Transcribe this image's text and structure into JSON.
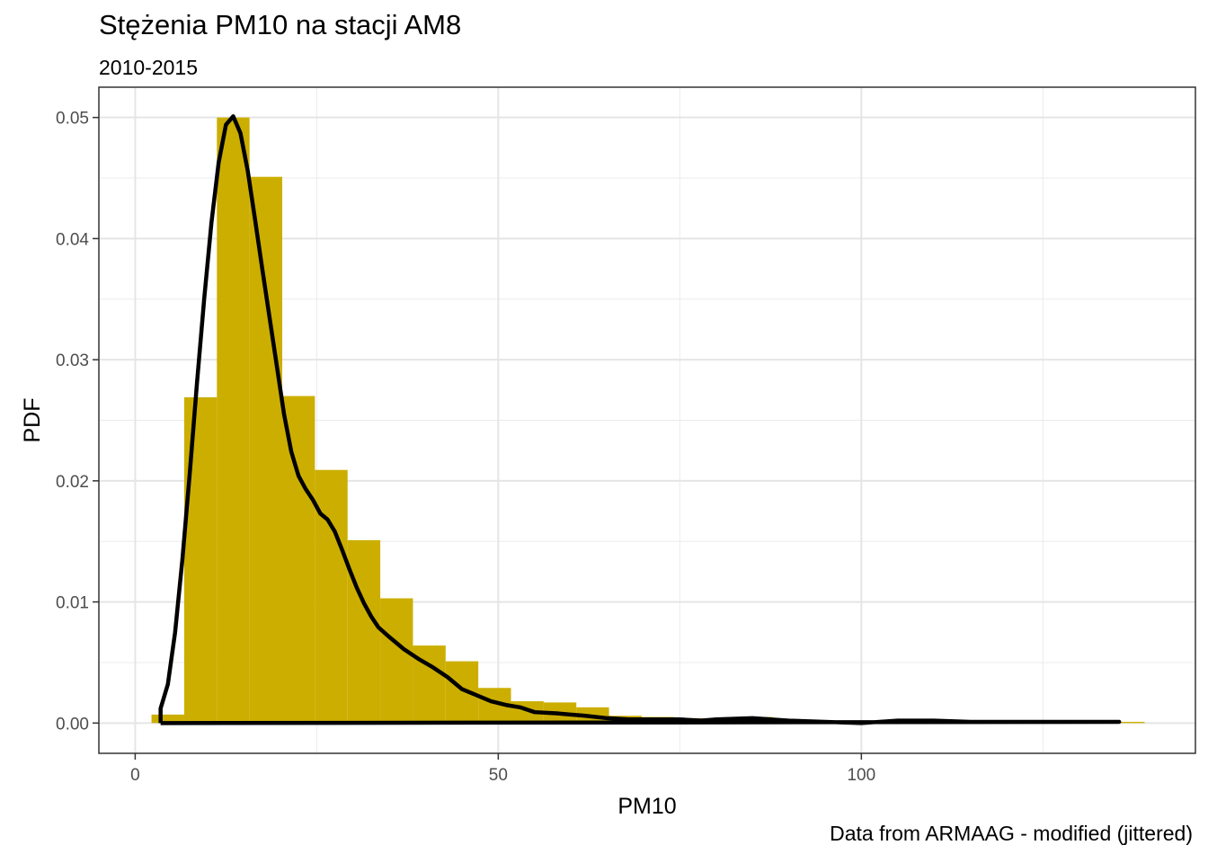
{
  "chart_data": {
    "type": "histogram",
    "title": "Stężenia PM10 na stacji AM8",
    "subtitle": "2010-2015",
    "caption": "Data from ARMAAG - modified (jittered)",
    "xlabel": "PM10",
    "ylabel": "PDF",
    "xlim": [
      -5,
      146
    ],
    "ylim": [
      -0.0025,
      0.0525
    ],
    "x_ticks": [
      0,
      50,
      100
    ],
    "x_tick_labels": [
      "0",
      "50",
      "100"
    ],
    "y_ticks": [
      0.0,
      0.01,
      0.02,
      0.03,
      0.04,
      0.05
    ],
    "y_tick_labels": [
      "0.00",
      "0.01",
      "0.02",
      "0.03",
      "0.04",
      "0.05"
    ],
    "grid": true,
    "bar_color": "#CCAE00",
    "line_color": "#000000",
    "bars": [
      {
        "x0": 2.25,
        "x1": 6.75,
        "y": 0.0007
      },
      {
        "x0": 6.75,
        "x1": 11.25,
        "y": 0.0269
      },
      {
        "x0": 11.25,
        "x1": 15.75,
        "y": 0.05
      },
      {
        "x0": 15.75,
        "x1": 20.25,
        "y": 0.0451
      },
      {
        "x0": 20.25,
        "x1": 24.75,
        "y": 0.027
      },
      {
        "x0": 24.75,
        "x1": 29.25,
        "y": 0.0209
      },
      {
        "x0": 29.25,
        "x1": 33.75,
        "y": 0.0151
      },
      {
        "x0": 33.75,
        "x1": 38.25,
        "y": 0.0103
      },
      {
        "x0": 38.25,
        "x1": 42.75,
        "y": 0.0064
      },
      {
        "x0": 42.75,
        "x1": 47.25,
        "y": 0.0051
      },
      {
        "x0": 47.25,
        "x1": 51.75,
        "y": 0.0029
      },
      {
        "x0": 51.75,
        "x1": 56.25,
        "y": 0.0018
      },
      {
        "x0": 56.25,
        "x1": 60.75,
        "y": 0.0017
      },
      {
        "x0": 60.75,
        "x1": 65.25,
        "y": 0.0013
      },
      {
        "x0": 65.25,
        "x1": 69.75,
        "y": 0.0006
      },
      {
        "x0": 69.75,
        "x1": 74.25,
        "y": 0.0005
      },
      {
        "x0": 74.25,
        "x1": 78.75,
        "y": 0.0004
      },
      {
        "x0": 78.75,
        "x1": 83.25,
        "y": 0.0004
      },
      {
        "x0": 83.25,
        "x1": 87.75,
        "y": 0.0005
      },
      {
        "x0": 87.75,
        "x1": 92.25,
        "y": 0.0003
      },
      {
        "x0": 92.25,
        "x1": 96.75,
        "y": 0.0002
      },
      {
        "x0": 96.75,
        "x1": 101.25,
        "y": 0.0001
      },
      {
        "x0": 101.25,
        "x1": 105.75,
        "y": 0.0001
      },
      {
        "x0": 105.75,
        "x1": 110.25,
        "y": 0.0002
      },
      {
        "x0": 110.25,
        "x1": 114.75,
        "y": 0.0001
      },
      {
        "x0": 114.75,
        "x1": 119.25,
        "y": 0.0001
      },
      {
        "x0": 119.25,
        "x1": 123.75,
        "y": 0.0001
      },
      {
        "x0": 123.75,
        "x1": 128.25,
        "y": 0.0001
      },
      {
        "x0": 128.25,
        "x1": 132.75,
        "y": 0.0001
      },
      {
        "x0": 132.75,
        "x1": 138.5,
        "y": 0.0001
      },
      {
        "x0": 138.5,
        "x1": 139.0,
        "y": 0.0001
      }
    ],
    "density": {
      "x": [
        3.5,
        3.5,
        4.5,
        5.5,
        6.5,
        7.5,
        8.5,
        9.5,
        10.5,
        11.5,
        12.5,
        13.5,
        14.5,
        15.5,
        16.5,
        17.5,
        18.5,
        19.5,
        20.5,
        21.5,
        22.5,
        23.5,
        24.5,
        25.5,
        26.5,
        27.5,
        28.5,
        29.5,
        30.5,
        31.5,
        32.5,
        33.5,
        35,
        37,
        39,
        41,
        43,
        45,
        47,
        49,
        51,
        53,
        55,
        58,
        62,
        65,
        68,
        70,
        75,
        78,
        80,
        85,
        90,
        95,
        100,
        105,
        110,
        115,
        120,
        125,
        130,
        135,
        135.5,
        3.5
      ],
      "y": [
        0.0,
        0.0012,
        0.0032,
        0.0075,
        0.0135,
        0.0205,
        0.028,
        0.035,
        0.0413,
        0.0463,
        0.0494,
        0.0501,
        0.0487,
        0.0456,
        0.0416,
        0.0375,
        0.0335,
        0.0295,
        0.0255,
        0.0224,
        0.0204,
        0.0193,
        0.0184,
        0.0173,
        0.0168,
        0.0158,
        0.0143,
        0.0127,
        0.0112,
        0.0099,
        0.0088,
        0.0079,
        0.0071,
        0.0061,
        0.0053,
        0.0046,
        0.0038,
        0.0028,
        0.0023,
        0.0018,
        0.0015,
        0.0013,
        0.0009,
        0.0008,
        0.0006,
        0.0004,
        0.0003,
        0.0003,
        0.0003,
        0.0002,
        0.0003,
        0.0004,
        0.0002,
        0.0001,
        0.0,
        0.0002,
        0.0002,
        0.0001,
        0.0001,
        0.0001,
        0.0001,
        0.0001,
        0.0001,
        0.0
      ]
    }
  }
}
